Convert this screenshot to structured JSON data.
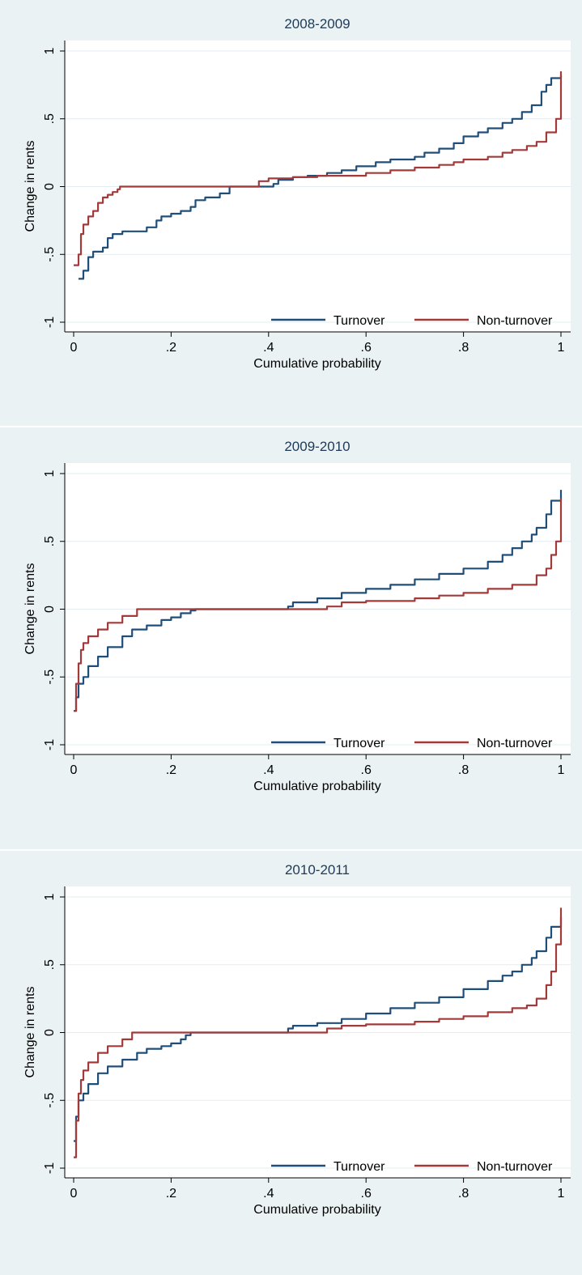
{
  "chart_data": [
    {
      "type": "line",
      "title": "2008-2009",
      "xlabel": "Cumulative probability",
      "ylabel": "Change in rents",
      "xlim": [
        0,
        1
      ],
      "ylim": [
        -1,
        1
      ],
      "xticks": [
        0,
        0.2,
        0.4,
        0.6,
        0.8,
        1
      ],
      "xtick_labels": [
        "0",
        ".2",
        ".4",
        ".6",
        ".8",
        "1"
      ],
      "yticks": [
        -1,
        -0.5,
        0,
        0.5,
        1
      ],
      "ytick_labels": [
        "-1",
        "-.5",
        "0",
        ".5",
        "1"
      ],
      "grid": true,
      "legend_position": "bottom-right",
      "series": [
        {
          "name": "Turnover",
          "color": "#1f4e79",
          "x": [
            0.01,
            0.02,
            0.03,
            0.04,
            0.06,
            0.07,
            0.08,
            0.1,
            0.12,
            0.13,
            0.15,
            0.17,
            0.18,
            0.2,
            0.22,
            0.24,
            0.25,
            0.27,
            0.3,
            0.32,
            0.35,
            0.37,
            0.4,
            0.41,
            0.42,
            0.45,
            0.48,
            0.52,
            0.55,
            0.58,
            0.62,
            0.65,
            0.7,
            0.72,
            0.75,
            0.78,
            0.8,
            0.83,
            0.85,
            0.88,
            0.9,
            0.92,
            0.94,
            0.96,
            0.97,
            0.98,
            1.0
          ],
          "y": [
            -0.68,
            -0.62,
            -0.52,
            -0.48,
            -0.45,
            -0.38,
            -0.35,
            -0.33,
            -0.33,
            -0.33,
            -0.3,
            -0.25,
            -0.22,
            -0.2,
            -0.18,
            -0.15,
            -0.1,
            -0.08,
            -0.05,
            0.0,
            0.0,
            0.0,
            0.0,
            0.02,
            0.05,
            0.07,
            0.08,
            0.1,
            0.12,
            0.15,
            0.18,
            0.2,
            0.22,
            0.25,
            0.28,
            0.32,
            0.37,
            0.4,
            0.43,
            0.47,
            0.5,
            0.55,
            0.6,
            0.7,
            0.75,
            0.8,
            0.82
          ]
        },
        {
          "name": "Non-turnover",
          "color": "#a33a3a",
          "x": [
            0.0,
            0.01,
            0.015,
            0.02,
            0.03,
            0.04,
            0.05,
            0.06,
            0.07,
            0.08,
            0.09,
            0.095,
            0.1,
            0.15,
            0.2,
            0.3,
            0.37,
            0.38,
            0.4,
            0.45,
            0.5,
            0.6,
            0.65,
            0.7,
            0.75,
            0.78,
            0.8,
            0.85,
            0.88,
            0.9,
            0.93,
            0.95,
            0.97,
            0.99,
            1.0
          ],
          "y": [
            -0.58,
            -0.5,
            -0.35,
            -0.28,
            -0.22,
            -0.18,
            -0.12,
            -0.08,
            -0.06,
            -0.04,
            -0.02,
            0.0,
            0.0,
            0.0,
            0.0,
            0.0,
            0.0,
            0.04,
            0.06,
            0.07,
            0.08,
            0.1,
            0.12,
            0.14,
            0.16,
            0.18,
            0.2,
            0.22,
            0.25,
            0.27,
            0.3,
            0.33,
            0.4,
            0.5,
            0.85
          ]
        }
      ]
    },
    {
      "type": "line",
      "title": "2009-2010",
      "xlabel": "Cumulative probability",
      "ylabel": "Change in rents",
      "xlim": [
        0,
        1
      ],
      "ylim": [
        -1,
        1
      ],
      "xticks": [
        0,
        0.2,
        0.4,
        0.6,
        0.8,
        1
      ],
      "xtick_labels": [
        "0",
        ".2",
        ".4",
        ".6",
        ".8",
        "1"
      ],
      "yticks": [
        -1,
        -0.5,
        0,
        0.5,
        1
      ],
      "ytick_labels": [
        "-1",
        "-.5",
        "0",
        ".5",
        "1"
      ],
      "grid": true,
      "legend_position": "bottom-right",
      "series": [
        {
          "name": "Turnover",
          "color": "#1f4e79",
          "x": [
            0.0,
            0.005,
            0.01,
            0.02,
            0.03,
            0.05,
            0.07,
            0.1,
            0.12,
            0.15,
            0.18,
            0.2,
            0.22,
            0.24,
            0.25,
            0.3,
            0.35,
            0.4,
            0.43,
            0.44,
            0.45,
            0.5,
            0.55,
            0.6,
            0.65,
            0.7,
            0.75,
            0.8,
            0.85,
            0.88,
            0.9,
            0.92,
            0.94,
            0.95,
            0.97,
            0.98,
            1.0
          ],
          "y": [
            -0.75,
            -0.65,
            -0.55,
            -0.5,
            -0.42,
            -0.35,
            -0.28,
            -0.2,
            -0.15,
            -0.12,
            -0.08,
            -0.06,
            -0.03,
            -0.01,
            0.0,
            0.0,
            0.0,
            0.0,
            0.0,
            0.02,
            0.05,
            0.08,
            0.12,
            0.15,
            0.18,
            0.22,
            0.26,
            0.3,
            0.35,
            0.4,
            0.45,
            0.5,
            0.55,
            0.6,
            0.7,
            0.8,
            0.88
          ]
        },
        {
          "name": "Non-turnover",
          "color": "#a33a3a",
          "x": [
            0.0,
            0.005,
            0.01,
            0.015,
            0.02,
            0.03,
            0.05,
            0.07,
            0.1,
            0.13,
            0.14,
            0.2,
            0.3,
            0.4,
            0.45,
            0.5,
            0.52,
            0.55,
            0.6,
            0.7,
            0.75,
            0.8,
            0.85,
            0.9,
            0.95,
            0.97,
            0.98,
            0.99,
            1.0
          ],
          "y": [
            -0.75,
            -0.55,
            -0.4,
            -0.3,
            -0.25,
            -0.2,
            -0.15,
            -0.1,
            -0.05,
            0.0,
            0.0,
            0.0,
            0.0,
            0.0,
            0.0,
            0.0,
            0.02,
            0.05,
            0.06,
            0.08,
            0.1,
            0.12,
            0.15,
            0.18,
            0.25,
            0.3,
            0.4,
            0.5,
            0.82
          ]
        }
      ]
    },
    {
      "type": "line",
      "title": "2010-2011",
      "xlabel": "Cumulative probability",
      "ylabel": "Change in rents",
      "xlim": [
        0,
        1
      ],
      "ylim": [
        -1,
        1
      ],
      "xticks": [
        0,
        0.2,
        0.4,
        0.6,
        0.8,
        1
      ],
      "xtick_labels": [
        "0",
        ".2",
        ".4",
        ".6",
        ".8",
        "1"
      ],
      "yticks": [
        -1,
        -0.5,
        0,
        0.5,
        1
      ],
      "ytick_labels": [
        "-1",
        "-.5",
        "0",
        ".5",
        "1"
      ],
      "grid": true,
      "legend_position": "bottom-right",
      "series": [
        {
          "name": "Turnover",
          "color": "#1f4e79",
          "x": [
            0.0,
            0.005,
            0.01,
            0.02,
            0.03,
            0.05,
            0.07,
            0.1,
            0.13,
            0.15,
            0.18,
            0.2,
            0.22,
            0.23,
            0.24,
            0.3,
            0.35,
            0.4,
            0.43,
            0.44,
            0.45,
            0.5,
            0.55,
            0.6,
            0.65,
            0.7,
            0.75,
            0.8,
            0.85,
            0.88,
            0.9,
            0.92,
            0.94,
            0.95,
            0.97,
            0.98,
            1.0
          ],
          "y": [
            -0.8,
            -0.62,
            -0.5,
            -0.45,
            -0.38,
            -0.3,
            -0.25,
            -0.2,
            -0.15,
            -0.12,
            -0.1,
            -0.08,
            -0.05,
            -0.02,
            0.0,
            0.0,
            0.0,
            0.0,
            0.0,
            0.03,
            0.05,
            0.07,
            0.1,
            0.14,
            0.18,
            0.22,
            0.26,
            0.32,
            0.38,
            0.42,
            0.45,
            0.5,
            0.55,
            0.6,
            0.7,
            0.78,
            0.85
          ]
        },
        {
          "name": "Non-turnover",
          "color": "#a33a3a",
          "x": [
            0.0,
            0.005,
            0.01,
            0.015,
            0.02,
            0.03,
            0.05,
            0.07,
            0.1,
            0.12,
            0.13,
            0.2,
            0.3,
            0.4,
            0.45,
            0.5,
            0.52,
            0.55,
            0.6,
            0.7,
            0.75,
            0.8,
            0.85,
            0.9,
            0.93,
            0.95,
            0.97,
            0.98,
            0.99,
            1.0
          ],
          "y": [
            -0.92,
            -0.65,
            -0.45,
            -0.35,
            -0.28,
            -0.22,
            -0.15,
            -0.1,
            -0.05,
            0.0,
            0.0,
            0.0,
            0.0,
            0.0,
            0.0,
            0.0,
            0.03,
            0.05,
            0.06,
            0.08,
            0.1,
            0.12,
            0.15,
            0.18,
            0.2,
            0.25,
            0.35,
            0.45,
            0.65,
            0.92
          ]
        }
      ]
    }
  ]
}
